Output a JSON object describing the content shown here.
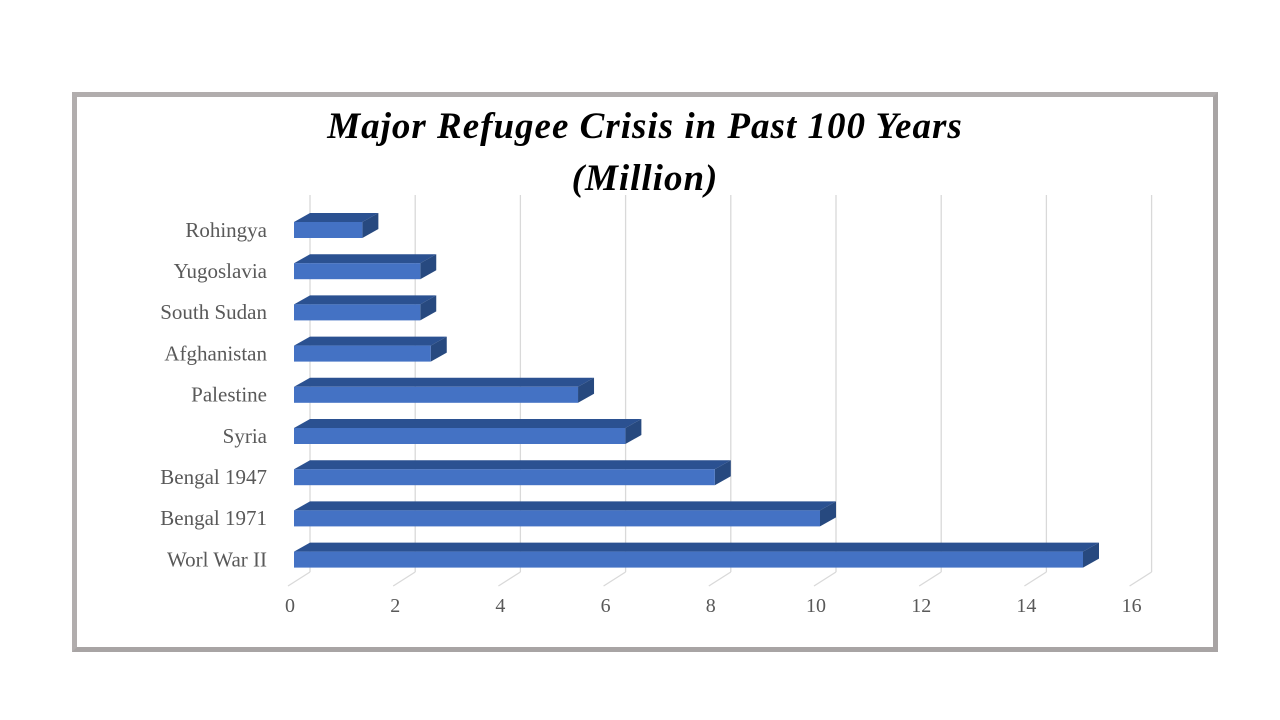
{
  "chart_data": {
    "type": "bar",
    "orientation": "horizontal",
    "style": "3d",
    "title": "Major Refugee Crisis in Past 100 Years (Million)",
    "title_lines": [
      "Major Refugee Crisis in Past 100 Years",
      "(Million)"
    ],
    "categories": [
      "Rohingya",
      "Yugoslavia",
      "South Sudan",
      "Afghanistan",
      "Palestine",
      "Syria",
      "Bengal 1947",
      "Bengal 1971",
      "Worl War II"
    ],
    "values": [
      1.3,
      2.4,
      2.4,
      2.6,
      5.4,
      6.3,
      8,
      10,
      15
    ],
    "xlabel": "",
    "ylabel": "",
    "xlim": [
      0,
      16
    ],
    "xticks": [
      0,
      2,
      4,
      6,
      8,
      10,
      12,
      14,
      16
    ],
    "xtick_labels": [
      "0",
      "2",
      "4",
      "6",
      "8",
      "10",
      "12",
      "14",
      "16"
    ],
    "grid": true,
    "legend_position": "none",
    "colors": {
      "bar_front": "#4472C4",
      "bar_top": "#2B5191",
      "bar_side": "#27497F",
      "gridline": "#D9D9D9",
      "axis_text": "#595959",
      "title_text": "#000000",
      "frame_border": "#B1ADAD"
    }
  }
}
